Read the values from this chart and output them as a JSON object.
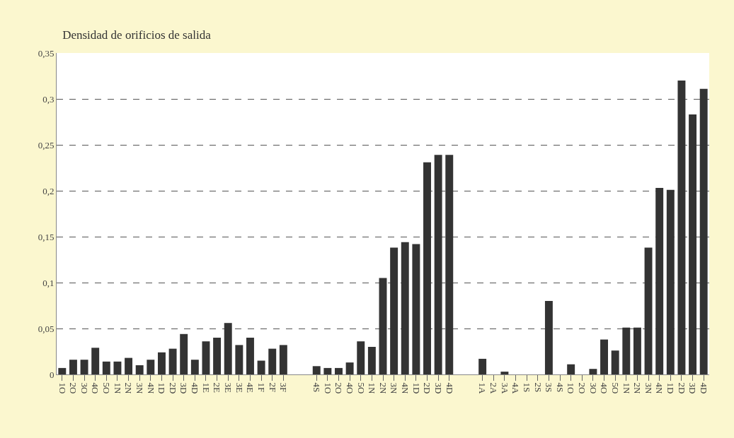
{
  "chart_data": {
    "type": "bar",
    "title": "Densidad de orificios de salida",
    "categories": [
      "1O",
      "2O",
      "3O",
      "4O",
      "5O",
      "1N",
      "2N",
      "3N",
      "4N",
      "1D",
      "2D",
      "3D",
      "4D",
      "1E",
      "2E",
      "3E",
      "3E",
      "4E",
      "1F",
      "2F",
      "3F",
      null,
      null,
      "4S",
      "1O",
      "2O",
      "4O",
      "5O",
      "1N",
      "2N",
      "3N",
      "4N",
      "1D",
      "2D",
      "3D",
      "4D",
      null,
      null,
      "1A",
      "2A",
      "3A",
      "4A",
      "1S",
      "2S",
      "3S",
      "4S",
      "1O",
      "2O",
      "3O",
      "4O",
      "5O",
      "1N",
      "2N",
      "3N",
      "4N",
      "1D",
      "2D",
      "3D",
      "4D"
    ],
    "values": [
      0.007,
      0.016,
      0.016,
      0.029,
      0.014,
      0.014,
      0.018,
      0.01,
      0.016,
      0.024,
      0.028,
      0.044,
      0.016,
      0.036,
      0.04,
      0.056,
      0.032,
      0.04,
      0.015,
      0.028,
      0.032,
      null,
      null,
      0.009,
      0.007,
      0.007,
      0.013,
      0.036,
      0.03,
      0.105,
      0.138,
      0.144,
      0.142,
      0.231,
      0.239,
      0.239,
      null,
      null,
      0.017,
      0,
      0.003,
      0,
      0,
      0,
      0.08,
      0,
      0.011,
      0,
      0.006,
      0.038,
      0.026,
      0.051,
      0.051,
      0.138,
      0.203,
      0.201,
      0.32,
      0.283,
      0.311
    ],
    "color": "#333333",
    "ylim": [
      0,
      0.35
    ],
    "yticks": [
      {
        "value": 0,
        "label": "0"
      },
      {
        "value": 0.05,
        "label": "0,05"
      },
      {
        "value": 0.1,
        "label": "0,1"
      },
      {
        "value": 0.15,
        "label": "0,15"
      },
      {
        "value": 0.2,
        "label": "0,2"
      },
      {
        "value": 0.25,
        "label": "0,25"
      },
      {
        "value": 0.3,
        "label": "0,3"
      },
      {
        "value": 0.35,
        "label": "0,35"
      }
    ],
    "grid": "y"
  }
}
